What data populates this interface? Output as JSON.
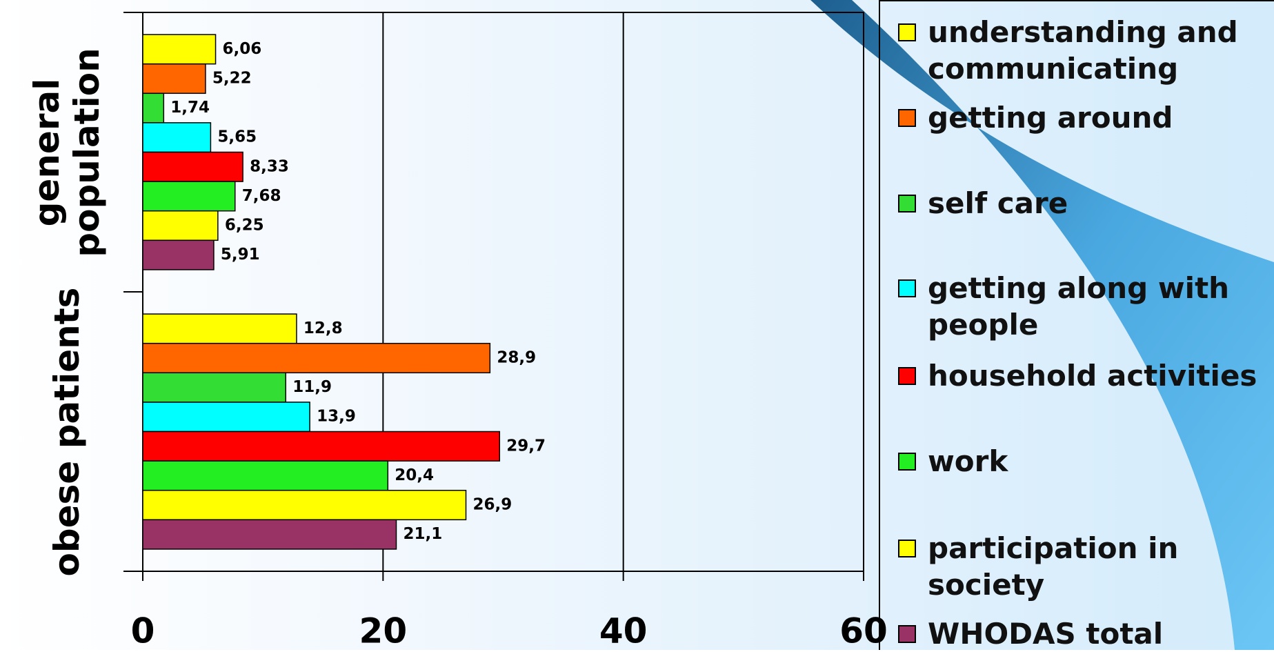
{
  "chart_data": {
    "type": "bar",
    "orientation": "horizontal",
    "categories": [
      "general population",
      "obese patients"
    ],
    "series": [
      {
        "name": "understanding and communicating",
        "color": "#ffff00",
        "values": [
          6.06,
          12.8
        ],
        "value_labels": [
          "6,06",
          "12,8"
        ]
      },
      {
        "name": "getting around",
        "color": "#ff6600",
        "values": [
          5.22,
          28.9
        ],
        "value_labels": [
          "5,22",
          "28,9"
        ]
      },
      {
        "name": "self care",
        "color": "#33dd33",
        "values": [
          1.74,
          11.9
        ],
        "value_labels": [
          "1,74",
          "11,9"
        ]
      },
      {
        "name": "getting along with people",
        "color": "#00ffff",
        "values": [
          5.65,
          13.9
        ],
        "value_labels": [
          "5,65",
          "13,9"
        ]
      },
      {
        "name": "household activities",
        "color": "#ff0000",
        "values": [
          8.33,
          29.7
        ],
        "value_labels": [
          "8,33",
          "29,7"
        ]
      },
      {
        "name": "work",
        "color": "#22ee22",
        "values": [
          7.68,
          20.4
        ],
        "value_labels": [
          "7,68",
          "20,4"
        ]
      },
      {
        "name": "participation in society",
        "color": "#ffff00",
        "values": [
          6.25,
          26.9
        ],
        "value_labels": [
          "6,25",
          "26,9"
        ]
      },
      {
        "name": "WHODAS total",
        "color": "#993366",
        "values": [
          5.91,
          21.1
        ],
        "value_labels": [
          "5,91",
          "21,1"
        ]
      }
    ],
    "xlim": [
      0,
      60
    ],
    "xticks": [
      0,
      20,
      40,
      60
    ],
    "grid": true,
    "legend": "right"
  }
}
